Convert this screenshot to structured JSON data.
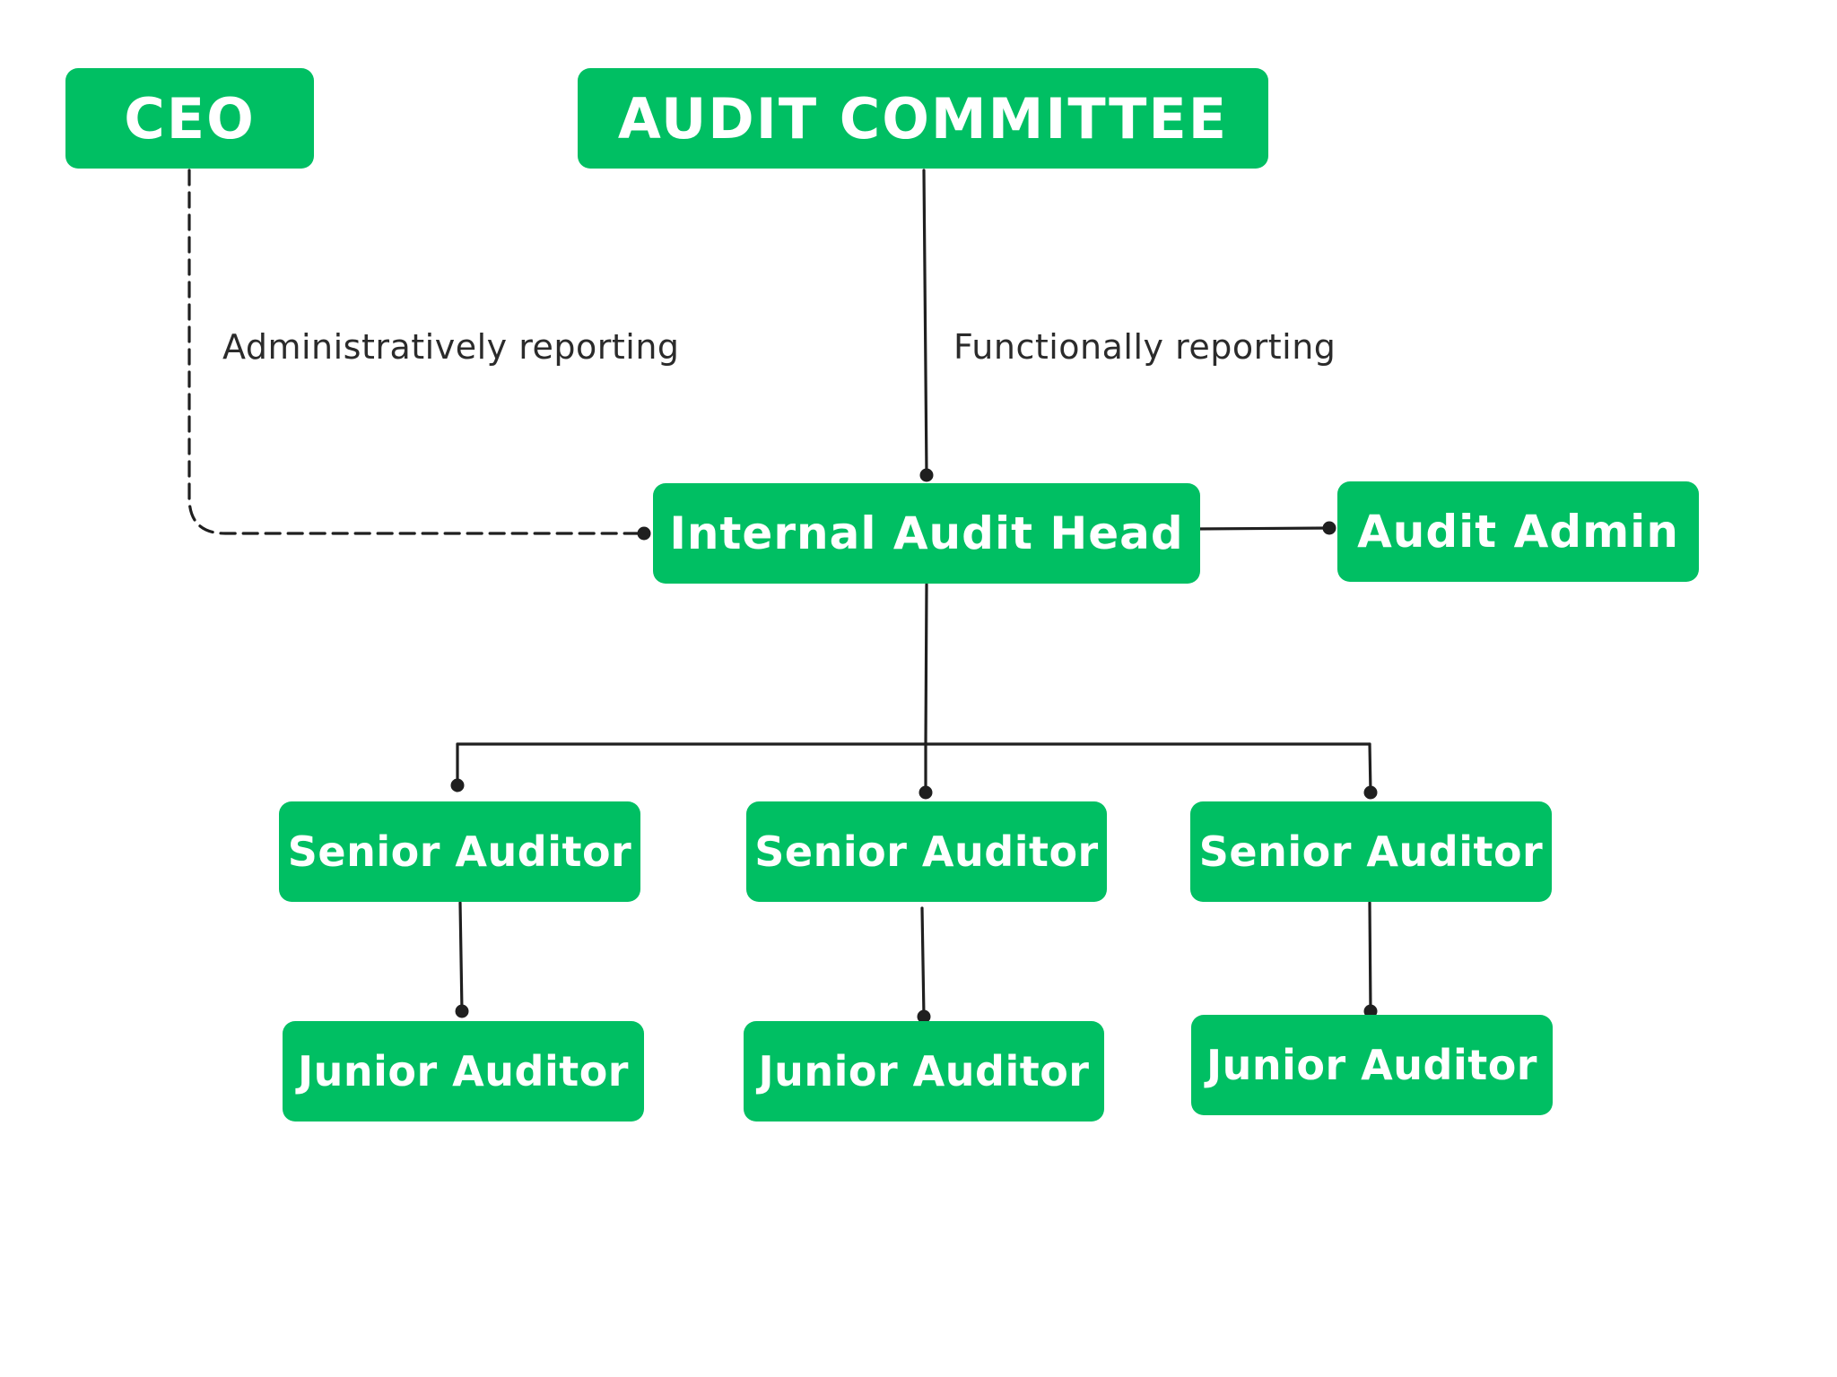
{
  "colors": {
    "node_fill": "#00BF63",
    "node_text": "#FFFFFF",
    "connector": "#1F1F1F",
    "label_text": "#2B2B2B"
  },
  "nodes": {
    "ceo": "CEO",
    "audit_committee": "AUDIT COMMITTEE",
    "internal_audit_head": "Internal Audit Head",
    "audit_admin": "Audit Admin",
    "senior_auditor_1": "Senior Auditor",
    "senior_auditor_2": "Senior Auditor",
    "senior_auditor_3": "Senior Auditor",
    "junior_auditor_1": "Junior Auditor",
    "junior_auditor_2": "Junior Auditor",
    "junior_auditor_3": "Junior Auditor"
  },
  "edge_labels": {
    "administrative": "Administratively reporting",
    "functional": "Functionally reporting"
  }
}
